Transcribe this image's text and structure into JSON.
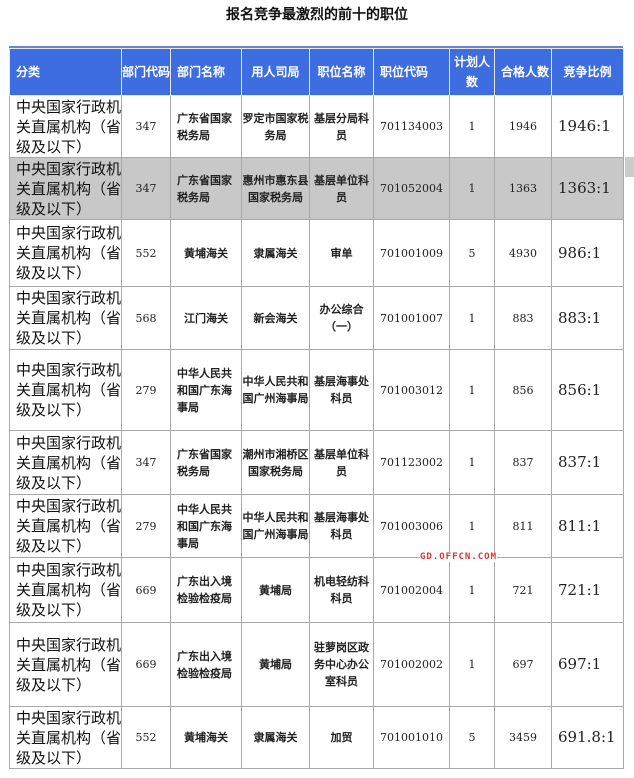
{
  "title": "报名竞争最激烈的前十的职位",
  "watermark": "GD.OFFCN.COM",
  "colors": {
    "header_bg": "#3d6de0",
    "highlight_row": "#c8c8c8",
    "watermark": "#dd3333"
  },
  "headers": [
    "分类",
    "部门代码",
    "部门名称",
    "用人司局",
    "职位名称",
    "职位代码",
    "计划人数",
    "合格人数",
    "竞争比例"
  ],
  "rows": [
    [
      "中央国家行政机关直属机构（省级及以下）",
      "347",
      "广东省国家税务局",
      "罗定市国家税务局",
      "基层分局科员",
      "701134003",
      "1",
      "1946",
      "1946:1"
    ],
    [
      "中央国家行政机关直属机构（省级及以下）",
      "347",
      "广东省国家税务局",
      "惠州市惠东县国家税务局",
      "基层单位科员",
      "701052004",
      "1",
      "1363",
      "1363:1"
    ],
    [
      "中央国家行政机关直属机构（省级及以下）",
      "552",
      "黄埔海关",
      "隶属海关",
      "审单",
      "701001009",
      "5",
      "4930",
      "986:1"
    ],
    [
      "中央国家行政机关直属机构（省级及以下）",
      "568",
      "江门海关",
      "新会海关",
      "办公综合（一）",
      "701001007",
      "1",
      "883",
      "883:1"
    ],
    [
      "中央国家行政机关直属机构（省级及以下）",
      "279",
      "中华人民共和国广东海事局",
      "中华人民共和国广州海事局",
      "基层海事处科员",
      "701003012",
      "1",
      "856",
      "856:1"
    ],
    [
      "中央国家行政机关直属机构（省级及以下）",
      "347",
      "广东省国家税务局",
      "潮州市湘桥区国家税务局",
      "基层单位科员",
      "701123002",
      "1",
      "837",
      "837:1"
    ],
    [
      "中央国家行政机关直属机构（省级及以下）",
      "279",
      "中华人民共和国广东海事局",
      "中华人民共和国广州海事局",
      "基层海事处科员",
      "701003006",
      "1",
      "811",
      "811:1"
    ],
    [
      "中央国家行政机关直属机构（省级及以下）",
      "669",
      "广东出入境检验检疫局",
      "黄埔局",
      "机电轻纺科科员",
      "701002004",
      "1",
      "721",
      "721:1"
    ],
    [
      "中央国家行政机关直属机构（省级及以下）",
      "669",
      "广东出入境检验检疫局",
      "黄埔局",
      "驻萝岗区政务中心办公室科员",
      "701002002",
      "1",
      "697",
      "697:1"
    ],
    [
      "中央国家行政机关直属机构（省级及以下）",
      "552",
      "黄埔海关",
      "隶属海关",
      "加贸",
      "701001010",
      "5",
      "3459",
      "691.8:1"
    ]
  ]
}
